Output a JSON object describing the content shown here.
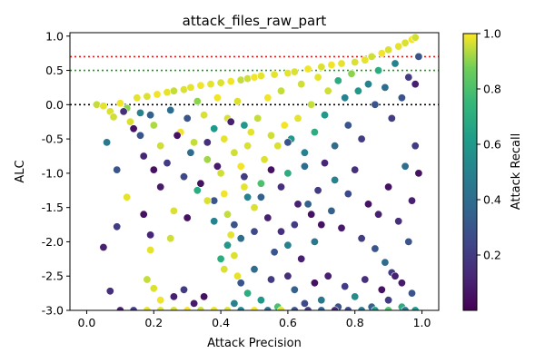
{
  "chart_data": {
    "type": "scatter",
    "title": "attack_files_raw_part",
    "xlabel": "Attack Precision",
    "ylabel": "ALC",
    "xlim": [
      -0.05,
      1.05
    ],
    "ylim": [
      -3.0,
      1.05
    ],
    "xticks": [
      "0.0",
      "0.2",
      "0.4",
      "0.6",
      "0.8",
      "1.0"
    ],
    "yticks": [
      "-3.0",
      "-2.5",
      "-2.0",
      "-1.5",
      "-1.0",
      "-0.5",
      "0.0",
      "0.5",
      "1.0"
    ],
    "grid": false,
    "colorbar": {
      "label": "Attack Recall",
      "colormap": "viridis",
      "range": [
        0.0,
        1.0
      ],
      "ticks": [
        "0.2",
        "0.4",
        "0.6",
        "0.8",
        "1.0"
      ]
    },
    "reference_lines": [
      {
        "y": 0.7,
        "color": "#e31a1c",
        "style": "dotted"
      },
      {
        "y": 0.5,
        "color": "#1a9a1a",
        "style": "dotted"
      },
      {
        "y": 0.0,
        "color": "#000000",
        "style": "dotted"
      }
    ],
    "marker": {
      "edgecolor": "#ffffff"
    },
    "points": [
      [
        0.03,
        0.0,
        0.95
      ],
      [
        0.05,
        -0.02,
        0.98
      ],
      [
        0.07,
        -0.1,
        0.97
      ],
      [
        0.08,
        -0.18,
        0.96
      ],
      [
        0.1,
        0.02,
        0.99
      ],
      [
        0.12,
        -0.05,
        0.9
      ],
      [
        0.13,
        -0.25,
        0.97
      ],
      [
        0.15,
        0.1,
        0.98
      ],
      [
        0.16,
        -0.12,
        0.5
      ],
      [
        0.18,
        0.12,
        0.97
      ],
      [
        0.2,
        -0.3,
        0.93
      ],
      [
        0.21,
        0.15,
        0.99
      ],
      [
        0.22,
        -0.6,
        0.96
      ],
      [
        0.24,
        0.18,
        0.98
      ],
      [
        0.25,
        -0.08,
        0.4
      ],
      [
        0.26,
        0.2,
        0.95
      ],
      [
        0.28,
        -0.4,
        0.99
      ],
      [
        0.29,
        0.22,
        0.97
      ],
      [
        0.3,
        -0.2,
        0.3
      ],
      [
        0.31,
        0.25,
        0.98
      ],
      [
        0.32,
        -0.55,
        0.95
      ],
      [
        0.33,
        0.05,
        0.9
      ],
      [
        0.34,
        0.28,
        0.99
      ],
      [
        0.35,
        -0.15,
        0.97
      ],
      [
        0.36,
        -0.8,
        0.92
      ],
      [
        0.37,
        0.3,
        0.98
      ],
      [
        0.38,
        -0.35,
        0.6
      ],
      [
        0.39,
        0.1,
        0.99
      ],
      [
        0.4,
        -1.0,
        0.96
      ],
      [
        0.4,
        0.32,
        0.97
      ],
      [
        0.41,
        -1.3,
        0.99
      ],
      [
        0.41,
        -0.5,
        0.98
      ],
      [
        0.42,
        -1.6,
        0.95
      ],
      [
        0.42,
        -0.2,
        0.97
      ],
      [
        0.43,
        -1.9,
        0.98
      ],
      [
        0.43,
        0.34,
        0.99
      ],
      [
        0.44,
        -2.2,
        0.97
      ],
      [
        0.44,
        -0.7,
        0.96
      ],
      [
        0.45,
        -2.5,
        0.98
      ],
      [
        0.45,
        0.05,
        0.97
      ],
      [
        0.46,
        -0.9,
        0.99
      ],
      [
        0.46,
        0.36,
        0.95
      ],
      [
        0.47,
        -1.2,
        0.98
      ],
      [
        0.47,
        -0.3,
        0.6
      ],
      [
        0.48,
        -0.6,
        0.97
      ],
      [
        0.48,
        0.38,
        0.96
      ],
      [
        0.49,
        -0.4,
        0.98
      ],
      [
        0.5,
        -1.5,
        0.97
      ],
      [
        0.5,
        0.4,
        0.99
      ],
      [
        0.51,
        -0.2,
        0.95
      ],
      [
        0.52,
        0.42,
        0.98
      ],
      [
        0.53,
        -0.8,
        0.97
      ],
      [
        0.54,
        0.1,
        0.99
      ],
      [
        0.55,
        -0.45,
        0.96
      ],
      [
        0.56,
        0.44,
        0.98
      ],
      [
        0.57,
        -0.6,
        0.97
      ],
      [
        0.58,
        0.2,
        0.95
      ],
      [
        0.59,
        -0.3,
        0.99
      ],
      [
        0.6,
        0.46,
        0.98
      ],
      [
        0.6,
        -1.0,
        0.7
      ],
      [
        0.61,
        -0.5,
        0.6
      ],
      [
        0.62,
        0.48,
        0.97
      ],
      [
        0.63,
        -0.2,
        0.98
      ],
      [
        0.64,
        0.3,
        0.96
      ],
      [
        0.65,
        -0.7,
        0.5
      ],
      [
        0.66,
        0.52,
        0.99
      ],
      [
        0.67,
        0.0,
        0.95
      ],
      [
        0.68,
        -0.4,
        0.7
      ],
      [
        0.69,
        0.4,
        0.98
      ],
      [
        0.7,
        0.55,
        0.97
      ],
      [
        0.71,
        -0.15,
        0.6
      ],
      [
        0.72,
        0.2,
        0.96
      ],
      [
        0.73,
        0.58,
        0.99
      ],
      [
        0.74,
        -0.6,
        0.4
      ],
      [
        0.75,
        0.35,
        0.7
      ],
      [
        0.76,
        0.6,
        0.98
      ],
      [
        0.77,
        0.1,
        0.5
      ],
      [
        0.78,
        -0.3,
        0.3
      ],
      [
        0.79,
        0.45,
        0.9
      ],
      [
        0.8,
        0.62,
        0.97
      ],
      [
        0.81,
        0.2,
        0.6
      ],
      [
        0.82,
        -0.5,
        0.2
      ],
      [
        0.83,
        0.65,
        0.98
      ],
      [
        0.84,
        0.3,
        0.5
      ],
      [
        0.85,
        0.7,
        0.96
      ],
      [
        0.86,
        0.0,
        0.3
      ],
      [
        0.87,
        0.5,
        0.7
      ],
      [
        0.88,
        0.75,
        0.99
      ],
      [
        0.89,
        0.25,
        0.4
      ],
      [
        0.9,
        0.8,
        0.97
      ],
      [
        0.91,
        -0.2,
        0.2
      ],
      [
        0.92,
        0.6,
        0.5
      ],
      [
        0.93,
        0.85,
        0.98
      ],
      [
        0.94,
        0.1,
        0.3
      ],
      [
        0.95,
        0.9,
        0.97
      ],
      [
        0.96,
        0.4,
        0.2
      ],
      [
        0.97,
        0.95,
        0.99
      ],
      [
        0.98,
        0.3,
        0.1
      ],
      [
        0.98,
        0.98,
        0.96
      ],
      [
        0.99,
        0.7,
        0.3
      ],
      [
        0.06,
        -0.55,
        0.45
      ],
      [
        0.09,
        -0.95,
        0.3
      ],
      [
        0.11,
        -0.1,
        0.15
      ],
      [
        0.14,
        -0.35,
        0.05
      ],
      [
        0.17,
        -0.75,
        0.12
      ],
      [
        0.19,
        -0.15,
        0.35
      ],
      [
        0.22,
        -1.2,
        0.08
      ],
      [
        0.24,
        -0.85,
        0.2
      ],
      [
        0.27,
        -0.45,
        0.05
      ],
      [
        0.29,
        -1.05,
        0.25
      ],
      [
        0.31,
        -0.7,
        0.4
      ],
      [
        0.34,
        -1.15,
        0.05
      ],
      [
        0.36,
        -0.55,
        0.15
      ],
      [
        0.38,
        -1.4,
        0.3
      ],
      [
        0.39,
        -0.9,
        0.08
      ],
      [
        0.43,
        -0.25,
        0.1
      ],
      [
        0.47,
        -1.05,
        0.2
      ],
      [
        0.52,
        -1.35,
        0.35
      ],
      [
        0.55,
        -0.95,
        0.05
      ],
      [
        0.58,
        -1.2,
        0.15
      ],
      [
        0.6,
        -0.55,
        0.3
      ],
      [
        0.63,
        -1.45,
        0.1
      ],
      [
        0.65,
        -0.9,
        0.4
      ],
      [
        0.67,
        -1.6,
        0.05
      ],
      [
        0.69,
        -1.25,
        0.2
      ],
      [
        0.71,
        -0.85,
        0.12
      ],
      [
        0.73,
        -1.55,
        0.35
      ],
      [
        0.74,
        -1.1,
        0.5
      ],
      [
        0.76,
        -1.8,
        0.08
      ],
      [
        0.78,
        -1.3,
        0.25
      ],
      [
        0.8,
        -0.95,
        0.15
      ],
      [
        0.82,
        -1.95,
        0.2
      ],
      [
        0.84,
        -1.45,
        0.05
      ],
      [
        0.86,
        -2.1,
        0.3
      ],
      [
        0.87,
        -1.6,
        0.1
      ],
      [
        0.89,
        -2.3,
        0.4
      ],
      [
        0.9,
        -1.2,
        0.05
      ],
      [
        0.91,
        -2.45,
        0.2
      ],
      [
        0.93,
        -1.7,
        0.15
      ],
      [
        0.94,
        -2.6,
        0.08
      ],
      [
        0.95,
        -0.9,
        0.4
      ],
      [
        0.96,
        -2.0,
        0.3
      ],
      [
        0.97,
        -1.4,
        0.1
      ],
      [
        0.98,
        -0.6,
        0.2
      ],
      [
        0.99,
        -1.0,
        0.05
      ],
      [
        0.05,
        -2.08,
        0.1
      ],
      [
        0.07,
        -2.72,
        0.15
      ],
      [
        0.09,
        -1.78,
        0.2
      ],
      [
        0.17,
        -1.6,
        0.05
      ],
      [
        0.19,
        -1.9,
        0.12
      ],
      [
        0.18,
        -2.55,
        0.95
      ],
      [
        0.19,
        -2.12,
        0.98
      ],
      [
        0.2,
        -2.68,
        0.97
      ],
      [
        0.22,
        -2.85,
        0.99
      ],
      [
        0.25,
        -1.95,
        0.96
      ],
      [
        0.26,
        -2.8,
        0.1
      ],
      [
        0.29,
        -2.7,
        0.2
      ],
      [
        0.32,
        -2.9,
        0.08
      ],
      [
        0.35,
        -2.8,
        0.05
      ],
      [
        0.41,
        -2.4,
        0.97
      ],
      [
        0.44,
        -2.9,
        0.5
      ],
      [
        0.46,
        -2.6,
        0.3
      ],
      [
        0.48,
        -2.75,
        0.7
      ],
      [
        0.5,
        -2.4,
        0.4
      ],
      [
        0.52,
        -2.85,
        0.6
      ],
      [
        0.55,
        -2.55,
        0.2
      ],
      [
        0.57,
        -2.95,
        0.8
      ],
      [
        0.6,
        -2.5,
        0.15
      ],
      [
        0.62,
        -2.7,
        0.35
      ],
      [
        0.65,
        -2.9,
        0.25
      ],
      [
        0.68,
        -2.6,
        0.05
      ],
      [
        0.7,
        -2.85,
        0.45
      ],
      [
        0.72,
        -2.5,
        0.1
      ],
      [
        0.75,
        -2.95,
        0.3
      ],
      [
        0.77,
        -2.65,
        0.2
      ],
      [
        0.8,
        -2.8,
        0.55
      ],
      [
        0.83,
        -2.55,
        0.15
      ],
      [
        0.85,
        -2.95,
        0.35
      ],
      [
        0.88,
        -2.7,
        0.05
      ],
      [
        0.9,
        -2.85,
        0.2
      ],
      [
        0.92,
        -2.5,
        0.1
      ],
      [
        0.94,
        -2.95,
        0.7
      ],
      [
        0.97,
        -2.75,
        0.3
      ],
      [
        0.98,
        -3.0,
        0.6
      ],
      [
        0.95,
        -3.0,
        0.45
      ],
      [
        0.1,
        -3.0,
        0.1
      ],
      [
        0.14,
        -3.0,
        0.2
      ],
      [
        0.18,
        -3.0,
        0.98
      ],
      [
        0.22,
        -3.0,
        0.97
      ],
      [
        0.26,
        -3.0,
        0.96
      ],
      [
        0.3,
        -3.0,
        0.99
      ],
      [
        0.34,
        -3.0,
        0.95
      ],
      [
        0.38,
        -3.0,
        0.98
      ],
      [
        0.42,
        -3.0,
        0.97
      ],
      [
        0.46,
        -3.0,
        0.5
      ],
      [
        0.5,
        -3.0,
        0.99
      ],
      [
        0.54,
        -3.0,
        0.4
      ],
      [
        0.58,
        -3.0,
        0.97
      ],
      [
        0.62,
        -3.0,
        0.3
      ],
      [
        0.66,
        -3.0,
        0.2
      ],
      [
        0.7,
        -3.0,
        0.35
      ],
      [
        0.74,
        -3.0,
        0.15
      ],
      [
        0.78,
        -3.0,
        0.25
      ],
      [
        0.82,
        -3.0,
        0.45
      ],
      [
        0.86,
        -3.0,
        0.6
      ],
      [
        0.9,
        -3.0,
        0.8
      ],
      [
        0.12,
        -1.35,
        0.98
      ],
      [
        0.16,
        -0.45,
        0.3
      ],
      [
        0.2,
        -0.95,
        0.05
      ],
      [
        0.26,
        -1.55,
        0.97
      ],
      [
        0.3,
        -1.65,
        0.05
      ],
      [
        0.33,
        -1.25,
        0.7
      ],
      [
        0.36,
        -1.4,
        0.97
      ],
      [
        0.38,
        -1.7,
        0.5
      ],
      [
        0.4,
        -2.25,
        0.7
      ],
      [
        0.42,
        -2.05,
        0.6
      ],
      [
        0.44,
        -1.75,
        0.3
      ],
      [
        0.46,
        -1.95,
        0.4
      ],
      [
        0.48,
        -1.35,
        0.5
      ],
      [
        0.5,
        -1.85,
        0.25
      ],
      [
        0.52,
        -1.15,
        0.8
      ],
      [
        0.54,
        -1.65,
        0.1
      ],
      [
        0.56,
        -2.15,
        0.3
      ],
      [
        0.58,
        -1.85,
        0.15
      ],
      [
        0.6,
        -2.05,
        0.5
      ],
      [
        0.62,
        -1.75,
        0.2
      ],
      [
        0.64,
        -2.25,
        0.1
      ],
      [
        0.66,
        -1.45,
        0.35
      ],
      [
        0.68,
        -2.0,
        0.45
      ],
      [
        0.7,
        -1.75,
        0.05
      ]
    ]
  }
}
